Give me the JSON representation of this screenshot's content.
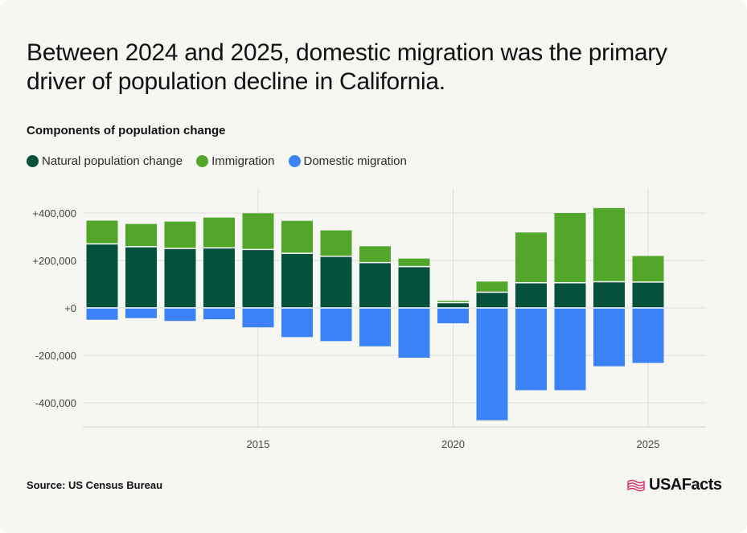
{
  "title": "Between 2024 and 2025, domestic migration was the primary driver of population decline in California.",
  "subtitle": "Components of population change",
  "colors": {
    "natural": "#05513c",
    "immigration": "#52a62a",
    "domestic": "#3b82f6"
  },
  "legend": [
    {
      "name": "Natural population change",
      "color": "#05513c"
    },
    {
      "name": "Immigration",
      "color": "#52a62a"
    },
    {
      "name": "Domestic migration",
      "color": "#3b82f6"
    }
  ],
  "source": "Source: US Census Bureau",
  "brand": {
    "name": "USAFacts",
    "icon": "usafacts-flag-icon"
  },
  "chart_data": {
    "type": "bar",
    "stacked": true,
    "x": [
      2011,
      2012,
      2013,
      2014,
      2015,
      2016,
      2017,
      2018,
      2019,
      2020,
      2021,
      2022,
      2023,
      2024,
      2025
    ],
    "series": [
      {
        "name": "Natural population change",
        "values": [
          270000,
          258000,
          251000,
          253000,
          246000,
          230000,
          218000,
          191000,
          174000,
          22000,
          66000,
          106000,
          106000,
          110000,
          109000
        ]
      },
      {
        "name": "Immigration",
        "values": [
          98000,
          96000,
          113000,
          128000,
          153000,
          137000,
          109000,
          69000,
          34000,
          8000,
          45000,
          212000,
          294000,
          311000,
          110000
        ]
      },
      {
        "name": "Domestic migration",
        "values": [
          -50000,
          -43000,
          -55000,
          -48000,
          -82000,
          -123000,
          -140000,
          -162000,
          -210000,
          -65000,
          -474000,
          -347000,
          -347000,
          -246000,
          -232000
        ]
      }
    ],
    "yticks": [
      400000,
      200000,
      0,
      -200000,
      -400000
    ],
    "ytick_labels": [
      "+400,000",
      "+200,000",
      "+0",
      "-200,000",
      "-400,000"
    ],
    "xticks": [
      2015,
      2020,
      2025
    ],
    "xtick_labels": [
      "2015",
      "2020",
      "2025"
    ],
    "ylim": [
      -500000,
      500000
    ],
    "grid": true,
    "legend_position": "top-left"
  }
}
